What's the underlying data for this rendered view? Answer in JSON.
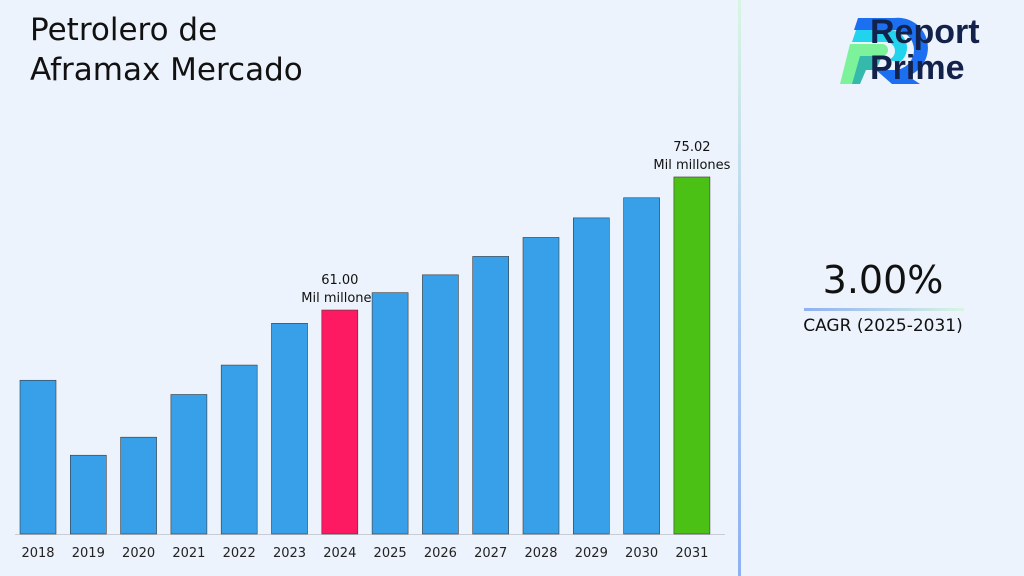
{
  "title": "Petrolero de Aframax Mercado",
  "title_lines": [
    "Petrolero de",
    "Aframax Mercado"
  ],
  "logo": {
    "text_line1": "Report",
    "text_line2": "Prime"
  },
  "cagr": {
    "value": "3.00%",
    "label": "CAGR (2025-2031)"
  },
  "chart_data": {
    "type": "bar",
    "categories": [
      "2018",
      "2019",
      "2020",
      "2021",
      "2022",
      "2023",
      "2024",
      "2025",
      "2026",
      "2027",
      "2028",
      "2029",
      "2030",
      "2031"
    ],
    "values": [
      53.6,
      45.7,
      47.6,
      52.1,
      55.2,
      59.6,
      61.0,
      62.83,
      64.71,
      66.65,
      68.65,
      70.71,
      72.83,
      75.02
    ],
    "unit": "Mil millones",
    "ylim": [
      37.4,
      80
    ],
    "grid": false,
    "colors": {
      "default": "#38a0e8",
      "highlight_2024": "#fe1a63",
      "highlight_2031": "#4cc115"
    },
    "data_labels": [
      {
        "category": "2024",
        "value": "61.00",
        "unit": "Mil millones"
      },
      {
        "category": "2031",
        "value": "75.02",
        "unit": "Mil millones"
      }
    ]
  }
}
